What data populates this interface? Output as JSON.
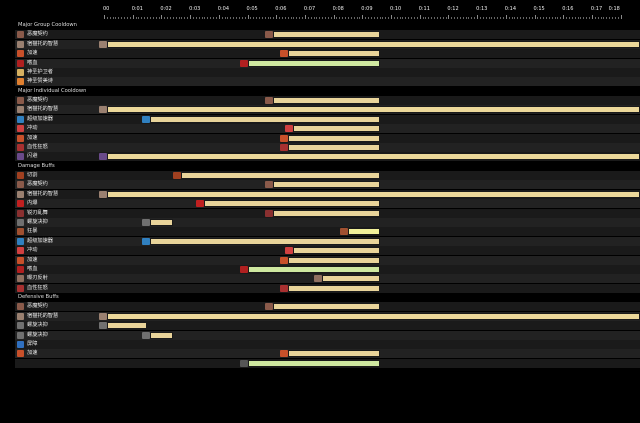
{
  "palette": {
    "bar_default": "#e9d49a",
    "bar_green": "#cfe8a0",
    "bar_yellow": "#f2f19a",
    "bar_long": "#ecd89a"
  },
  "ruler": {
    "ticks": [
      "00",
      "0:01",
      "0:02",
      "0:03",
      "0:04",
      "0:05",
      "0:06",
      "0:07",
      "0:08",
      "0:09",
      "0:10",
      "0:11",
      "0:12",
      "0:13",
      "0:14",
      "0:15",
      "0:16",
      "0:17",
      "0:18"
    ]
  },
  "timeline": [
    {
      "type": "section",
      "label": "Major Group Cooldown"
    },
    {
      "type": "row",
      "label": "恶魔契约",
      "icon": "demon-pact-icon",
      "icon_color": "#8a5a4a",
      "start": 5.9,
      "end": 9.6,
      "color": "bar_default"
    },
    {
      "type": "row",
      "label": "宿猫托的智慧",
      "icon": "wisdom-icon",
      "icon_color": "#9a8070",
      "start": 0.1,
      "end": 19,
      "color": "bar_long"
    },
    {
      "type": "row",
      "label": "加速",
      "icon": "haste-icon",
      "icon_color": "#c8502a",
      "start": 6.4,
      "end": 9.6,
      "color": "bar_default"
    },
    {
      "type": "row",
      "label": "嗜血",
      "icon": "bloodlust-icon",
      "icon_color": "#b02020",
      "start": 5.0,
      "end": 9.6,
      "color": "bar_green"
    },
    {
      "type": "row",
      "label": "神圣护卫者",
      "icon": "guardian-icon",
      "icon_color": "#d6b060",
      "start": null,
      "end": null,
      "color": "bar_default"
    },
    {
      "type": "row",
      "label": "神圣赞美诗",
      "icon": "hymn-icon",
      "icon_color": "#e08030",
      "start": null,
      "end": null,
      "color": "bar_default"
    },
    {
      "type": "section",
      "label": "Major Individual Cooldown"
    },
    {
      "type": "row",
      "label": "恶魔契约",
      "icon": "demon-pact-icon",
      "icon_color": "#8a5a4a",
      "start": 5.9,
      "end": 9.6,
      "color": "bar_default"
    },
    {
      "type": "row",
      "label": "宿猫托的智慧",
      "icon": "wisdom-icon",
      "icon_color": "#9a8070",
      "start": 0.1,
      "end": 19,
      "color": "bar_long"
    },
    {
      "type": "row",
      "label": "超级加速器",
      "icon": "accelerator-icon",
      "icon_color": "#3080c0",
      "start": 1.6,
      "end": 9.6,
      "color": "bar_default"
    },
    {
      "type": "row",
      "label": "冲动",
      "icon": "impulse-icon",
      "icon_color": "#d04040",
      "start": 6.6,
      "end": 9.6,
      "color": "bar_default"
    },
    {
      "type": "row",
      "label": "加速",
      "icon": "haste-icon",
      "icon_color": "#c8502a",
      "start": 6.4,
      "end": 9.6,
      "color": "bar_default"
    },
    {
      "type": "row",
      "label": "血性狂怒",
      "icon": "blood-fury-icon",
      "icon_color": "#a83030",
      "start": 6.4,
      "end": 9.6,
      "color": "bar_default"
    },
    {
      "type": "row",
      "label": "闪避",
      "icon": "evasion-icon",
      "icon_color": "#6a4a8a",
      "start": 0.1,
      "end": 19,
      "color": "bar_long"
    },
    {
      "type": "section",
      "label": "Damage Buffs"
    },
    {
      "type": "row",
      "label": "切割",
      "icon": "slice-icon",
      "icon_color": "#a04020",
      "start": 2.7,
      "end": 9.6,
      "color": "bar_default"
    },
    {
      "type": "row",
      "label": "恶魔契约",
      "icon": "demon-pact-icon",
      "icon_color": "#8a5a4a",
      "start": 5.9,
      "end": 9.6,
      "color": "bar_default"
    },
    {
      "type": "row",
      "label": "宿猫托的智慧",
      "icon": "wisdom-icon",
      "icon_color": "#9a8070",
      "start": 0.1,
      "end": 19,
      "color": "bar_long"
    },
    {
      "type": "row",
      "label": "内爆",
      "icon": "implosion-icon",
      "icon_color": "#c02020",
      "start": 3.5,
      "end": 9.6,
      "color": "bar_default"
    },
    {
      "type": "row",
      "label": "锐刃乱舞",
      "icon": "blade-flurry-icon",
      "icon_color": "#8a3030",
      "start": 5.9,
      "end": 9.6,
      "color": "bar_default"
    },
    {
      "type": "row",
      "label": "螺旋决抑",
      "icon": "spiral-icon",
      "icon_color": "#707070",
      "start": 1.6,
      "end": 2.4,
      "color": "bar_default"
    },
    {
      "type": "row",
      "label": "狂暴",
      "icon": "berserk-icon",
      "icon_color": "#a05030",
      "start": 8.5,
      "end": 9.6,
      "color": "bar_yellow"
    },
    {
      "type": "row",
      "label": "超级加速器",
      "icon": "accelerator-icon",
      "icon_color": "#3080c0",
      "start": 1.6,
      "end": 9.6,
      "color": "bar_default"
    },
    {
      "type": "row",
      "label": "冲动",
      "icon": "impulse-icon",
      "icon_color": "#d04040",
      "start": 6.6,
      "end": 9.6,
      "color": "bar_default"
    },
    {
      "type": "row",
      "label": "加速",
      "icon": "haste-icon",
      "icon_color": "#c8502a",
      "start": 6.4,
      "end": 9.6,
      "color": "bar_default"
    },
    {
      "type": "row",
      "label": "嗜血",
      "icon": "bloodlust-icon",
      "icon_color": "#b02020",
      "start": 5.0,
      "end": 9.6,
      "color": "bar_green"
    },
    {
      "type": "row",
      "label": "曝刃反射",
      "icon": "blade-reflect-icon",
      "icon_color": "#907060",
      "start": 7.6,
      "end": 9.6,
      "color": "bar_default"
    },
    {
      "type": "row",
      "label": "血性狂怒",
      "icon": "blood-fury-icon",
      "icon_color": "#a83030",
      "start": 6.4,
      "end": 9.6,
      "color": "bar_default"
    },
    {
      "type": "section",
      "label": "Defensive Buffs"
    },
    {
      "type": "row",
      "label": "恶魔契约",
      "icon": "demon-pact-icon",
      "icon_color": "#8a5a4a",
      "start": 5.9,
      "end": 9.6,
      "color": "bar_default"
    },
    {
      "type": "row",
      "label": "宿猫托的智慧",
      "icon": "wisdom-icon",
      "icon_color": "#9a8070",
      "start": 0.1,
      "end": 19,
      "color": "bar_long"
    },
    {
      "type": "row",
      "label": "螺旋决抑",
      "icon": "spiral-icon",
      "icon_color": "#707070",
      "start": 0.1,
      "end": 1.5,
      "color": "bar_default"
    },
    {
      "type": "row",
      "label": "螺旋决抑",
      "icon": "spiral-icon",
      "icon_color": "#707070",
      "start": 1.6,
      "end": 2.4,
      "color": "bar_default"
    },
    {
      "type": "row",
      "label": "屏障",
      "icon": "barrier-icon",
      "icon_color": "#3070c0",
      "start": null,
      "end": null,
      "color": "bar_default"
    },
    {
      "type": "row",
      "label": "加速",
      "icon": "haste-icon",
      "icon_color": "#c8502a",
      "start": 6.4,
      "end": 9.6,
      "color": "bar_default"
    },
    {
      "type": "row",
      "label": "",
      "icon": "",
      "icon_color": "#555",
      "start": 5.0,
      "end": 9.6,
      "color": "bar_green"
    }
  ]
}
